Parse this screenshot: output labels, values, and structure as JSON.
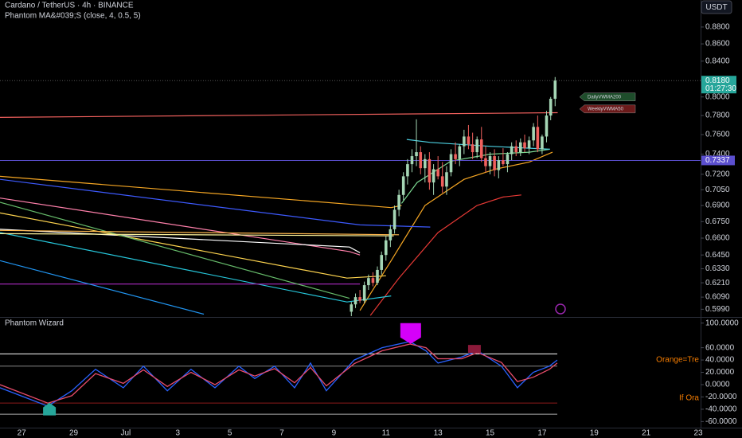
{
  "chart_data": [
    {
      "type": "candlestick",
      "title": "Cardano / TetherUS · 4h · BINANCE",
      "subtitle": "Phantom MA&#039;S (close, 4, 0.5, 5)",
      "currency_button": "USDT",
      "x": [
        12.67,
        12.83,
        13.0,
        13.17,
        13.33,
        13.5,
        13.67,
        13.83,
        14.0,
        14.17,
        14.33,
        14.5,
        14.67,
        14.83,
        15.0,
        15.17,
        15.33,
        15.5,
        15.67,
        15.83,
        16.0,
        16.17,
        16.33,
        16.5,
        16.67,
        16.83,
        17.0,
        17.17,
        17.33,
        17.5,
        17.67,
        17.83,
        18.0,
        18.17,
        18.33,
        18.5,
        18.67,
        18.83,
        19.0,
        19.17,
        19.33,
        19.5,
        19.67,
        19.83,
        20.0,
        20.17,
        20.33,
        20.5
      ],
      "open": [
        0.597,
        0.603,
        0.609,
        0.606,
        0.619,
        0.625,
        0.621,
        0.632,
        0.645,
        0.658,
        0.668,
        0.686,
        0.7,
        0.718,
        0.73,
        0.738,
        0.742,
        0.726,
        0.735,
        0.712,
        0.725,
        0.718,
        0.708,
        0.722,
        0.74,
        0.735,
        0.748,
        0.758,
        0.75,
        0.742,
        0.755,
        0.736,
        0.728,
        0.738,
        0.724,
        0.734,
        0.73,
        0.74,
        0.748,
        0.742,
        0.752,
        0.746,
        0.754,
        0.768,
        0.745,
        0.758,
        0.78,
        0.798
      ],
      "high": [
        0.605,
        0.612,
        0.615,
        0.622,
        0.628,
        0.63,
        0.635,
        0.648,
        0.662,
        0.672,
        0.69,
        0.705,
        0.722,
        0.735,
        0.745,
        0.776,
        0.748,
        0.74,
        0.742,
        0.73,
        0.738,
        0.732,
        0.728,
        0.745,
        0.752,
        0.75,
        0.765,
        0.77,
        0.762,
        0.758,
        0.768,
        0.748,
        0.742,
        0.745,
        0.738,
        0.746,
        0.742,
        0.752,
        0.754,
        0.756,
        0.76,
        0.758,
        0.772,
        0.78,
        0.76,
        0.785,
        0.8,
        0.822
      ],
      "low": [
        0.592,
        0.6,
        0.604,
        0.604,
        0.615,
        0.618,
        0.619,
        0.628,
        0.64,
        0.652,
        0.664,
        0.68,
        0.695,
        0.71,
        0.722,
        0.728,
        0.72,
        0.712,
        0.705,
        0.7,
        0.715,
        0.702,
        0.7,
        0.718,
        0.73,
        0.728,
        0.74,
        0.745,
        0.735,
        0.736,
        0.732,
        0.722,
        0.72,
        0.718,
        0.716,
        0.728,
        0.722,
        0.734,
        0.738,
        0.738,
        0.742,
        0.74,
        0.748,
        0.742,
        0.74,
        0.752,
        0.775,
        0.79
      ],
      "close": [
        0.603,
        0.609,
        0.606,
        0.619,
        0.625,
        0.621,
        0.632,
        0.645,
        0.658,
        0.668,
        0.686,
        0.7,
        0.718,
        0.73,
        0.738,
        0.742,
        0.726,
        0.735,
        0.712,
        0.725,
        0.718,
        0.708,
        0.722,
        0.74,
        0.735,
        0.748,
        0.758,
        0.75,
        0.742,
        0.755,
        0.736,
        0.728,
        0.738,
        0.724,
        0.734,
        0.73,
        0.74,
        0.748,
        0.742,
        0.752,
        0.746,
        0.754,
        0.768,
        0.745,
        0.758,
        0.78,
        0.798,
        0.818
      ],
      "up_color": "#a5d6b5",
      "down_color": "#f0605d",
      "xlim": [
        -0.83,
        26.09
      ],
      "xticks": [
        {
          "value": 0,
          "label": "27"
        },
        {
          "value": 2,
          "label": "29"
        },
        {
          "value": 4,
          "label": "Jul"
        },
        {
          "value": 6,
          "label": "3"
        },
        {
          "value": 8,
          "label": "5"
        },
        {
          "value": 10,
          "label": "7"
        },
        {
          "value": 12,
          "label": "9"
        },
        {
          "value": 14,
          "label": "11"
        },
        {
          "value": 16,
          "label": "13"
        },
        {
          "value": 18,
          "label": "15"
        },
        {
          "value": 20,
          "label": "17"
        },
        {
          "value": 22,
          "label": "19"
        },
        {
          "value": 24,
          "label": "21"
        },
        {
          "value": 26,
          "label": "23"
        }
      ],
      "ylim": [
        0.5934,
        0.913
      ],
      "log_scale": true,
      "yticks": [
        {
          "value": 0.88,
          "label": "0.8800"
        },
        {
          "value": 0.86,
          "label": "0.8600"
        },
        {
          "value": 0.84,
          "label": "0.8400"
        },
        {
          "value": 0.8,
          "label": "0.8000"
        },
        {
          "value": 0.78,
          "label": "0.7800"
        },
        {
          "value": 0.76,
          "label": "0.7600"
        },
        {
          "value": 0.74,
          "label": "0.7400"
        },
        {
          "value": 0.72,
          "label": "0.7200"
        },
        {
          "value": 0.705,
          "label": "0.7050"
        },
        {
          "value": 0.69,
          "label": "0.6900"
        },
        {
          "value": 0.675,
          "label": "0.6750"
        },
        {
          "value": 0.66,
          "label": "0.6600"
        },
        {
          "value": 0.645,
          "label": "0.6450"
        },
        {
          "value": 0.633,
          "label": "0.6330"
        },
        {
          "value": 0.621,
          "label": "0.6210"
        },
        {
          "value": 0.609,
          "label": "0.6090"
        },
        {
          "value": 0.599,
          "label": "0.5990"
        }
      ],
      "last_price": {
        "value": 0.818,
        "label": "0.8180",
        "countdown": "01:27:30",
        "color": "#26a69a"
      },
      "level": {
        "value": 0.7337,
        "label": "0.7337",
        "color": "#5b4fcf"
      },
      "tags": [
        {
          "text": "DailyVWMA200",
          "value": 0.8,
          "color": "#1e4d2b"
        },
        {
          "text": "WeeklyVWMA50",
          "value": 0.787,
          "color": "#6b1a1a"
        }
      ],
      "lines": [
        {
          "color": "#f0605d",
          "x": [
            -0.83,
            20.6
          ],
          "values": [
            0.778,
            0.783
          ]
        },
        {
          "color": "#f5a623",
          "x": [
            13.0,
            14.2,
            15.5,
            17.0,
            18.2,
            19.5,
            20.4
          ],
          "values": [
            0.598,
            0.64,
            0.69,
            0.715,
            0.725,
            0.732,
            0.742
          ]
        },
        {
          "color": "#e53935",
          "x": [
            13.4,
            14.5,
            16.0,
            17.5,
            18.5,
            19.2
          ],
          "values": [
            0.594,
            0.625,
            0.665,
            0.69,
            0.698,
            0.7
          ]
        },
        {
          "color": "#7cd992",
          "x": [
            14.6,
            15.2,
            16.5,
            18.0,
            19.5,
            20.3
          ],
          "values": [
            0.692,
            0.712,
            0.733,
            0.74,
            0.742,
            0.745
          ]
        },
        {
          "color": "#4dd0e1",
          "x": [
            14.8,
            15.7,
            18.0,
            20.3
          ],
          "values": [
            0.755,
            0.752,
            0.748,
            0.745
          ]
        },
        {
          "color": "#f5a623",
          "x": [
            -0.83,
            14.2,
            14.6
          ],
          "values": [
            0.718,
            0.688,
            0.69
          ]
        },
        {
          "color": "#3d5afe",
          "x": [
            -0.83,
            13.0,
            15.7
          ],
          "values": [
            0.715,
            0.672,
            0.67
          ]
        },
        {
          "color": "#ff80ab",
          "x": [
            -0.83,
            12.6,
            13.0
          ],
          "values": [
            0.697,
            0.648,
            0.645
          ]
        },
        {
          "color": "#ffffff",
          "x": [
            -0.83,
            12.6,
            13.0
          ],
          "values": [
            0.668,
            0.652,
            0.647
          ]
        },
        {
          "color": "#ffd54f",
          "x": [
            -0.83,
            12.5,
            14.0
          ],
          "values": [
            0.683,
            0.625,
            0.627
          ]
        },
        {
          "color": "#26c6da",
          "x": [
            -0.83,
            12.5,
            14.2
          ],
          "values": [
            0.665,
            0.605,
            0.61
          ]
        },
        {
          "color": "#9c27b0",
          "x": [
            -0.83,
            13.0
          ],
          "values": [
            0.62,
            0.62
          ]
        },
        {
          "color": "#66bb6a",
          "x": [
            -0.83,
            12.6
          ],
          "values": [
            0.693,
            0.608
          ]
        },
        {
          "color": "#2196f3",
          "x": [
            -0.83,
            7.0
          ],
          "values": [
            0.64,
            0.595
          ]
        },
        {
          "color": "#ffb74d",
          "x": [
            -0.83,
            14.5
          ],
          "values": [
            0.667,
            0.663
          ]
        },
        {
          "color": "#fff59d",
          "x": [
            -0.83,
            14.3
          ],
          "values": [
            0.664,
            0.662
          ]
        }
      ]
    },
    {
      "type": "line",
      "title": "Phantom Wizard",
      "x": [
        -0.83,
        1.01,
        1.93,
        2.84,
        3.91,
        4.68,
        5.6,
        6.51,
        7.43,
        8.35,
        8.96,
        9.72,
        10.49,
        11.1,
        11.71,
        12.78,
        13.85,
        14.92,
        15.54,
        16.0,
        16.91,
        17.52,
        18.44,
        19.05,
        19.66,
        20.28,
        20.58
      ],
      "series": [
        {
          "color": "#2962ff",
          "values": [
            -5,
            -35,
            -10,
            25,
            -5,
            30,
            -10,
            25,
            -5,
            30,
            10,
            30,
            -5,
            35,
            -10,
            40,
            60,
            70,
            55,
            35,
            45,
            55,
            30,
            -5,
            20,
            30,
            40
          ]
        },
        {
          "color": "#e84c6b",
          "values": [
            0,
            -30,
            -18,
            18,
            2,
            24,
            -3,
            20,
            0,
            24,
            14,
            26,
            3,
            28,
            -2,
            34,
            55,
            66,
            60,
            42,
            42,
            52,
            36,
            5,
            12,
            25,
            35
          ]
        }
      ],
      "xlim": [
        -0.83,
        26.09
      ],
      "ylim": [
        -69.9,
        107.4
      ],
      "yticks": [
        {
          "value": 100,
          "label": "100.0000"
        },
        {
          "value": 60,
          "label": "60.0000"
        },
        {
          "value": 40,
          "label": "40.0000"
        },
        {
          "value": 20,
          "label": "20.0000"
        },
        {
          "value": 0,
          "label": "0.0000"
        },
        {
          "value": -20,
          "label": "-20.0000"
        },
        {
          "value": -40,
          "label": "-40.0000"
        },
        {
          "value": -60,
          "label": "-60.0000"
        }
      ],
      "levels": [
        {
          "value": 50,
          "color": "#ffffff"
        },
        {
          "value": 30,
          "color": "#888888"
        },
        {
          "value": -30,
          "color": "#8b1a1a"
        },
        {
          "value": -48,
          "color": "#aaaaaa"
        }
      ],
      "markers": [
        {
          "x": 14.95,
          "value": 100,
          "color": "#d500f9",
          "shape": "down"
        },
        {
          "x": 1.07,
          "value": -50,
          "color": "#26a69a",
          "shape": "up"
        },
        {
          "x": 17.4,
          "value": 58,
          "color": "#8b1a3a",
          "shape": "box"
        }
      ],
      "annotations": [
        {
          "text": "Orange=Tre",
          "value": 40,
          "color": "#f57c00"
        },
        {
          "text": "If Ora",
          "value": -22,
          "color": "#f57c00"
        }
      ]
    }
  ]
}
